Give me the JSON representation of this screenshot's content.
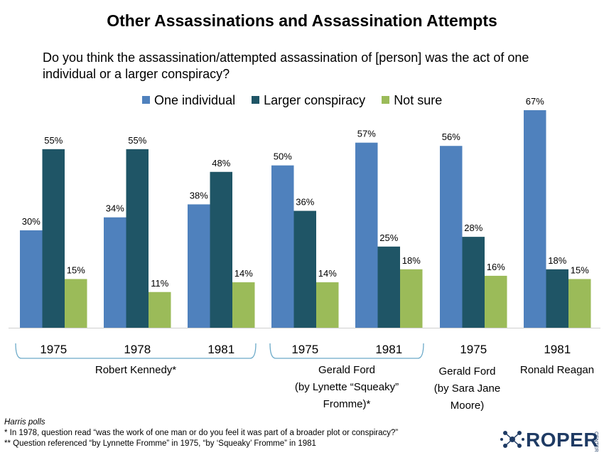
{
  "colors": {
    "one_individual": "#4f81bd",
    "larger_conspiracy": "#1f5566",
    "not_sure": "#9bbb59",
    "bracket": "#6aa9c8",
    "logo": "#1f3b64"
  },
  "chart_data": {
    "type": "bar",
    "title": "Other Assassinations and Assassination Attempts",
    "question": "Do you think the assassination/attempted assassination of [person] was the act of one individual or a larger conspiracy?",
    "categories": [
      "1975",
      "1978",
      "1981",
      "1975",
      "1981",
      "1975",
      "1981"
    ],
    "series": [
      {
        "name": "One individual",
        "values": [
          30,
          34,
          38,
          50,
          57,
          56,
          67
        ]
      },
      {
        "name": "Larger conspiracy",
        "values": [
          55,
          55,
          48,
          36,
          25,
          28,
          18
        ]
      },
      {
        "name": "Not sure",
        "values": [
          15,
          11,
          14,
          14,
          18,
          16,
          15
        ]
      }
    ],
    "value_suffix": "%",
    "ylim": [
      0,
      67
    ],
    "groups": [
      {
        "label_lines": [
          "Robert Kennedy*"
        ],
        "categories": [
          0,
          1,
          2
        ]
      },
      {
        "label_lines": [
          "Gerald Ford",
          "(by Lynette “Squeaky”",
          "Fromme)*"
        ],
        "categories": [
          3,
          4
        ]
      },
      {
        "label_lines": [
          "Gerald Ford",
          "(by Sara Jane",
          "Moore)"
        ],
        "categories": [
          5
        ]
      },
      {
        "label_lines": [
          "Ronald Reagan"
        ],
        "categories": [
          6
        ]
      }
    ],
    "grid": false,
    "legend": "top"
  },
  "footer": {
    "source": "Harris polls",
    "note1": "* In 1978, question read “was the work of one man or do you feel it was part of a broader plot or conspiracy?”",
    "note2": "** Question referenced “by Lynnette Fromme” in 1975, “by ‘Squeaky’ Fromme” in 1981"
  },
  "logo": {
    "text": "ROPER",
    "sub": "CENTER"
  }
}
